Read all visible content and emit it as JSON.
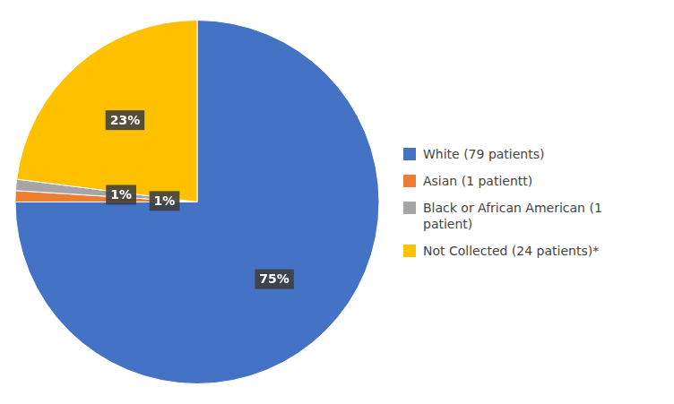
{
  "chart_data": {
    "type": "pie",
    "categories": [
      "White (79 patients)",
      "Asian (1 patientt)",
      "Black or African American (1\n patient)",
      "Not Collected (24 patients)*"
    ],
    "values": [
      75,
      1,
      1,
      23
    ],
    "value_labels": [
      "75%",
      "1%",
      "1%",
      "23%"
    ],
    "colors": [
      "#4472C4",
      "#ED7D31",
      "#A5A5A5",
      "#FFC000"
    ],
    "data_labels": true,
    "legend": "right"
  }
}
